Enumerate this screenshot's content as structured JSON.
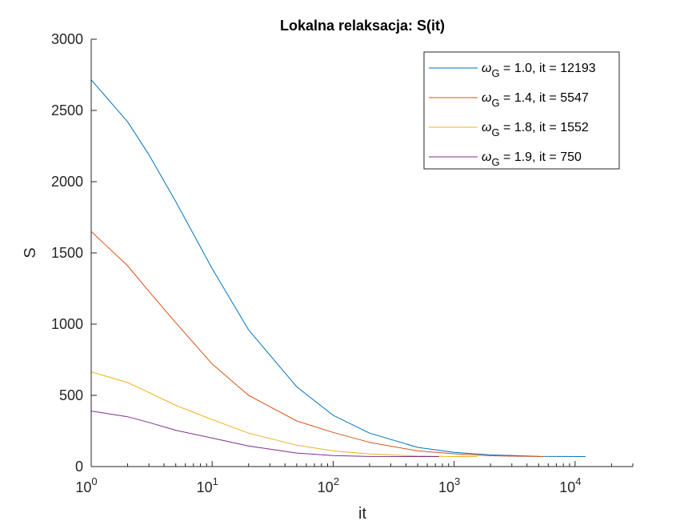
{
  "chart_data": {
    "type": "line",
    "title": "Lokalna relaksacja: S(it)",
    "xlabel": "it",
    "ylabel": "S",
    "xscale": "log",
    "xlim": [
      1,
      30000
    ],
    "ylim": [
      0,
      3000
    ],
    "xtick_labels": [
      {
        "value": 1,
        "base": "10",
        "exp": "0"
      },
      {
        "value": 10,
        "base": "10",
        "exp": "1"
      },
      {
        "value": 100,
        "base": "10",
        "exp": "2"
      },
      {
        "value": 1000,
        "base": "10",
        "exp": "3"
      },
      {
        "value": 10000,
        "base": "10",
        "exp": "4"
      }
    ],
    "ytick_labels": [
      "0",
      "500",
      "1000",
      "1500",
      "2000",
      "2500",
      "3000"
    ],
    "yticks": [
      0,
      500,
      1000,
      1500,
      2000,
      2500,
      3000
    ],
    "grid": false,
    "legend_position": "top-right",
    "series": [
      {
        "name_symbol": "ω",
        "name_sub": "G",
        "name_rest": " = 1.0, it = 12193",
        "color": "#0072BD",
        "x": [
          1,
          2,
          3,
          5,
          10,
          20,
          50,
          100,
          200,
          500,
          1000,
          2000,
          5000,
          12193
        ],
        "y": [
          2715,
          2420,
          2190,
          1860,
          1390,
          960,
          560,
          360,
          235,
          135,
          100,
          82,
          72,
          70
        ]
      },
      {
        "name_symbol": "ω",
        "name_sub": "G",
        "name_rest": " = 1.4, it = 5547",
        "color": "#D95319",
        "x": [
          1,
          2,
          3,
          5,
          10,
          20,
          50,
          100,
          200,
          500,
          1000,
          2000,
          5547
        ],
        "y": [
          1650,
          1410,
          1230,
          1010,
          720,
          500,
          320,
          240,
          170,
          110,
          90,
          76,
          70
        ]
      },
      {
        "name_symbol": "ω",
        "name_sub": "G",
        "name_rest": " = 1.8, it = 1552",
        "color": "#EDB120",
        "x": [
          1,
          2,
          3,
          5,
          10,
          20,
          50,
          100,
          200,
          500,
          1000,
          1552
        ],
        "y": [
          665,
          590,
          520,
          430,
          330,
          235,
          150,
          110,
          88,
          74,
          70,
          70
        ]
      },
      {
        "name_symbol": "ω",
        "name_sub": "G",
        "name_rest": " = 1.9, it = 750",
        "color": "#7E2F8E",
        "x": [
          1,
          2,
          3,
          5,
          10,
          20,
          50,
          100,
          200,
          500,
          750
        ],
        "y": [
          390,
          350,
          310,
          255,
          200,
          145,
          95,
          77,
          71,
          70,
          70
        ]
      }
    ]
  }
}
